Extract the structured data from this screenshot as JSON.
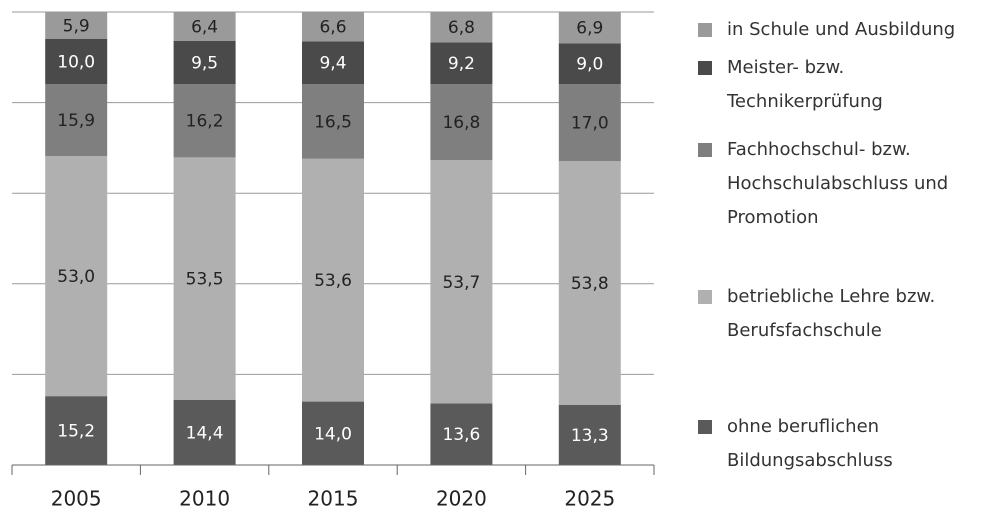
{
  "chart_data": {
    "type": "stacked_bar",
    "categories": [
      "2005",
      "2010",
      "2015",
      "2020",
      "2025"
    ],
    "ylim": [
      0,
      100
    ],
    "yticks": [
      0,
      20,
      40,
      60,
      80,
      100
    ],
    "grid": true,
    "series": [
      {
        "name": "ohne beruflichen Bildungsabschluss",
        "color": "#5a5a5a",
        "values": [
          15.2,
          14.4,
          14.0,
          13.6,
          13.3
        ],
        "value_labels": [
          "15,2",
          "14,4",
          "14,0",
          "13,6",
          "13,3"
        ]
      },
      {
        "name": "betriebliche Lehre bzw. Berufsfachschule",
        "color": "#b0b0b0",
        "values": [
          53.0,
          53.5,
          53.6,
          53.7,
          53.8
        ],
        "value_labels": [
          "53,0",
          "53,5",
          "53,6",
          "53,7",
          "53,8"
        ]
      },
      {
        "name": "Fachhochschul- bzw. Hochschulabschluss und Promotion",
        "color": "#7f7f7f",
        "values": [
          15.9,
          16.2,
          16.5,
          16.8,
          17.0
        ],
        "value_labels": [
          "15,9",
          "16,2",
          "16,5",
          "16,8",
          "17,0"
        ]
      },
      {
        "name": "Meister- bzw. Technikerprüfung",
        "color": "#4a4a4a",
        "values": [
          10.0,
          9.5,
          9.4,
          9.2,
          9.0
        ],
        "value_labels": [
          "10,0",
          "9,5",
          "9,4",
          "9,2",
          "9,0"
        ]
      },
      {
        "name": "in Schule und Ausbildung",
        "color": "#9a9a9a",
        "values": [
          5.9,
          6.4,
          6.6,
          6.8,
          6.9
        ],
        "value_labels": [
          "5,9",
          "6,4",
          "6,6",
          "6,8",
          "6,9"
        ]
      }
    ]
  }
}
